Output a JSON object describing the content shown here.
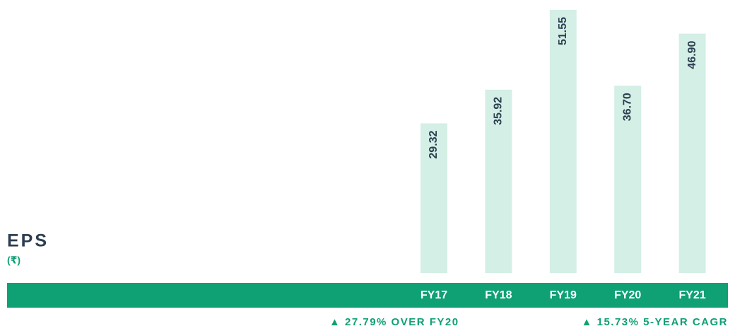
{
  "chart_data": {
    "type": "bar",
    "title": "EPS",
    "subtitle": "(₹)",
    "categories": [
      "FY17",
      "FY18",
      "FY19",
      "FY20",
      "FY21"
    ],
    "values": [
      29.32,
      35.92,
      51.55,
      36.7,
      46.9
    ],
    "value_labels": [
      "29.32",
      "35.92",
      "51.55",
      "36.70",
      "46.90"
    ],
    "color": "#d4efe5",
    "band_color": "#0fa074",
    "annotations": [
      "▲ 27.79% OVER FY20",
      "▲ 15.73% 5-YEAR CAGR"
    ]
  }
}
